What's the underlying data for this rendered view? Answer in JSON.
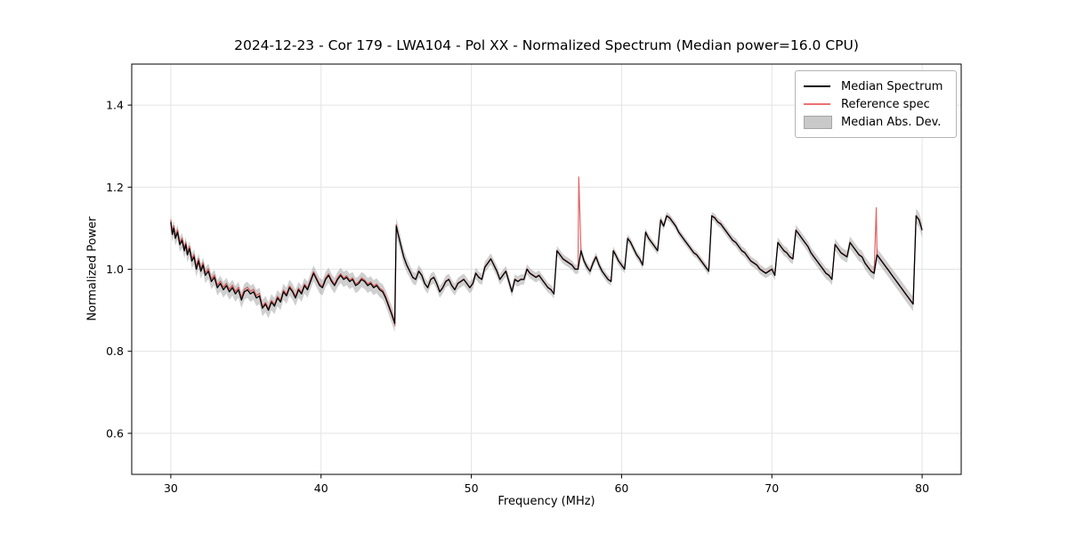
{
  "chart_data": {
    "type": "line",
    "title": "2024-12-23 - Cor 179 - LWA104 - Pol XX - Normalized Spectrum (Median power=16.0 CPU)",
    "xlabel": "Frequency (MHz)",
    "ylabel": "Normalized Power",
    "xlim": [
      27.4,
      82.6
    ],
    "ylim": [
      0.5,
      1.5
    ],
    "xticks": [
      30,
      40,
      50,
      60,
      70,
      80
    ],
    "xtick_labels": [
      "30",
      "40",
      "50",
      "60",
      "70",
      "80"
    ],
    "yticks": [
      0.6,
      0.8,
      1.0,
      1.2,
      1.4
    ],
    "ytick_labels": [
      "0.6",
      "0.8",
      "1.0",
      "1.2",
      "1.4"
    ],
    "grid": true,
    "legend_position": "upper right",
    "colors": {
      "median": "#000000",
      "reference": "rgba(215,40,40,0.72)",
      "band_fill": "rgba(128,128,128,0.38)",
      "grid": "#e4e4e4",
      "frame": "#000000"
    },
    "legend": [
      {
        "label": "Median Spectrum",
        "swatch": "line",
        "color": "#000000",
        "thickness": 2
      },
      {
        "label": "Reference spec",
        "swatch": "line",
        "color": "#ee7070",
        "thickness": 2
      },
      {
        "label": "Median Abs. Dev.",
        "swatch": "patch",
        "color": "#c9c9c9",
        "border": "#a6a6a6"
      }
    ],
    "series": [
      {
        "name": "Median Spectrum",
        "type": "line",
        "points": [
          [
            30.0,
            1.115
          ],
          [
            30.1,
            1.085
          ],
          [
            30.2,
            1.1
          ],
          [
            30.3,
            1.075
          ],
          [
            30.45,
            1.09
          ],
          [
            30.6,
            1.06
          ],
          [
            30.75,
            1.07
          ],
          [
            30.9,
            1.045
          ],
          [
            31.0,
            1.06
          ],
          [
            31.1,
            1.035
          ],
          [
            31.25,
            1.05
          ],
          [
            31.4,
            1.02
          ],
          [
            31.55,
            1.03
          ],
          [
            31.7,
            1.0
          ],
          [
            31.85,
            1.02
          ],
          [
            32.0,
            0.995
          ],
          [
            32.15,
            1.01
          ],
          [
            32.3,
            0.985
          ],
          [
            32.5,
            0.995
          ],
          [
            32.7,
            0.97
          ],
          [
            32.9,
            0.98
          ],
          [
            33.1,
            0.955
          ],
          [
            33.3,
            0.965
          ],
          [
            33.5,
            0.95
          ],
          [
            33.7,
            0.96
          ],
          [
            33.9,
            0.945
          ],
          [
            34.1,
            0.955
          ],
          [
            34.3,
            0.94
          ],
          [
            34.5,
            0.95
          ],
          [
            34.7,
            0.925
          ],
          [
            34.9,
            0.945
          ],
          [
            35.1,
            0.95
          ],
          [
            35.3,
            0.94
          ],
          [
            35.5,
            0.945
          ],
          [
            35.7,
            0.93
          ],
          [
            35.9,
            0.935
          ],
          [
            36.1,
            0.905
          ],
          [
            36.3,
            0.915
          ],
          [
            36.5,
            0.9
          ],
          [
            36.7,
            0.92
          ],
          [
            36.9,
            0.91
          ],
          [
            37.1,
            0.93
          ],
          [
            37.3,
            0.92
          ],
          [
            37.5,
            0.945
          ],
          [
            37.7,
            0.935
          ],
          [
            37.9,
            0.955
          ],
          [
            38.1,
            0.945
          ],
          [
            38.3,
            0.93
          ],
          [
            38.5,
            0.95
          ],
          [
            38.7,
            0.94
          ],
          [
            38.9,
            0.96
          ],
          [
            39.1,
            0.95
          ],
          [
            39.3,
            0.97
          ],
          [
            39.5,
            0.99
          ],
          [
            39.7,
            0.975
          ],
          [
            39.9,
            0.96
          ],
          [
            40.1,
            0.955
          ],
          [
            40.3,
            0.975
          ],
          [
            40.5,
            0.985
          ],
          [
            40.7,
            0.97
          ],
          [
            40.9,
            0.96
          ],
          [
            41.1,
            0.975
          ],
          [
            41.3,
            0.985
          ],
          [
            41.5,
            0.975
          ],
          [
            41.7,
            0.98
          ],
          [
            41.9,
            0.97
          ],
          [
            42.1,
            0.975
          ],
          [
            42.3,
            0.96
          ],
          [
            42.5,
            0.965
          ],
          [
            42.7,
            0.975
          ],
          [
            42.9,
            0.97
          ],
          [
            43.1,
            0.96
          ],
          [
            43.3,
            0.965
          ],
          [
            43.5,
            0.955
          ],
          [
            43.7,
            0.96
          ],
          [
            43.9,
            0.95
          ],
          [
            44.1,
            0.945
          ],
          [
            44.3,
            0.93
          ],
          [
            44.5,
            0.91
          ],
          [
            44.7,
            0.89
          ],
          [
            44.9,
            0.868
          ],
          [
            45.0,
            1.105
          ],
          [
            45.1,
            1.09
          ],
          [
            45.3,
            1.06
          ],
          [
            45.5,
            1.03
          ],
          [
            45.7,
            1.01
          ],
          [
            45.9,
            0.995
          ],
          [
            46.1,
            0.98
          ],
          [
            46.3,
            0.975
          ],
          [
            46.5,
            0.995
          ],
          [
            46.7,
            0.985
          ],
          [
            46.9,
            0.965
          ],
          [
            47.1,
            0.955
          ],
          [
            47.3,
            0.975
          ],
          [
            47.5,
            0.98
          ],
          [
            47.7,
            0.965
          ],
          [
            47.9,
            0.945
          ],
          [
            48.1,
            0.955
          ],
          [
            48.3,
            0.97
          ],
          [
            48.5,
            0.975
          ],
          [
            48.7,
            0.96
          ],
          [
            48.9,
            0.95
          ],
          [
            49.1,
            0.965
          ],
          [
            49.3,
            0.97
          ],
          [
            49.5,
            0.975
          ],
          [
            49.7,
            0.965
          ],
          [
            49.9,
            0.955
          ],
          [
            50.1,
            0.965
          ],
          [
            50.3,
            0.99
          ],
          [
            50.5,
            0.98
          ],
          [
            50.7,
            0.975
          ],
          [
            50.9,
            1.005
          ],
          [
            51.1,
            1.015
          ],
          [
            51.3,
            1.025
          ],
          [
            51.5,
            1.01
          ],
          [
            51.7,
            0.995
          ],
          [
            51.9,
            0.975
          ],
          [
            52.1,
            0.985
          ],
          [
            52.3,
            0.995
          ],
          [
            52.5,
            0.97
          ],
          [
            52.7,
            0.945
          ],
          [
            52.9,
            0.975
          ],
          [
            53.1,
            0.97
          ],
          [
            53.3,
            0.975
          ],
          [
            53.5,
            0.975
          ],
          [
            53.7,
            1.0
          ],
          [
            53.9,
            0.99
          ],
          [
            54.1,
            0.985
          ],
          [
            54.3,
            0.98
          ],
          [
            54.5,
            0.985
          ],
          [
            54.7,
            0.975
          ],
          [
            54.9,
            0.965
          ],
          [
            55.1,
            0.955
          ],
          [
            55.3,
            0.95
          ],
          [
            55.5,
            0.94
          ],
          [
            55.7,
            1.045
          ],
          [
            55.9,
            1.035
          ],
          [
            56.1,
            1.025
          ],
          [
            56.3,
            1.02
          ],
          [
            56.5,
            1.015
          ],
          [
            56.7,
            1.01
          ],
          [
            56.9,
            1.0
          ],
          [
            57.1,
            1.0
          ],
          [
            57.3,
            1.045
          ],
          [
            57.5,
            1.02
          ],
          [
            57.7,
            1.005
          ],
          [
            57.9,
            0.995
          ],
          [
            58.1,
            1.015
          ],
          [
            58.3,
            1.03
          ],
          [
            58.5,
            1.01
          ],
          [
            58.7,
            0.995
          ],
          [
            58.9,
            0.985
          ],
          [
            59.1,
            0.975
          ],
          [
            59.3,
            0.97
          ],
          [
            59.45,
            1.045
          ],
          [
            59.6,
            1.035
          ],
          [
            59.8,
            1.02
          ],
          [
            60.0,
            1.01
          ],
          [
            60.2,
            1.0
          ],
          [
            60.4,
            1.075
          ],
          [
            60.6,
            1.065
          ],
          [
            60.8,
            1.05
          ],
          [
            61.0,
            1.035
          ],
          [
            61.2,
            1.025
          ],
          [
            61.4,
            1.01
          ],
          [
            61.6,
            1.09
          ],
          [
            61.8,
            1.075
          ],
          [
            62.0,
            1.065
          ],
          [
            62.2,
            1.055
          ],
          [
            62.4,
            1.045
          ],
          [
            62.6,
            1.12
          ],
          [
            62.8,
            1.105
          ],
          [
            63.0,
            1.13
          ],
          [
            63.2,
            1.125
          ],
          [
            63.4,
            1.115
          ],
          [
            63.6,
            1.105
          ],
          [
            63.8,
            1.09
          ],
          [
            64.0,
            1.08
          ],
          [
            64.2,
            1.07
          ],
          [
            64.4,
            1.06
          ],
          [
            64.6,
            1.05
          ],
          [
            64.8,
            1.04
          ],
          [
            65.0,
            1.035
          ],
          [
            65.2,
            1.025
          ],
          [
            65.4,
            1.015
          ],
          [
            65.6,
            1.005
          ],
          [
            65.8,
            0.995
          ],
          [
            66.0,
            1.13
          ],
          [
            66.2,
            1.125
          ],
          [
            66.4,
            1.115
          ],
          [
            66.6,
            1.11
          ],
          [
            66.8,
            1.1
          ],
          [
            67.0,
            1.09
          ],
          [
            67.2,
            1.08
          ],
          [
            67.4,
            1.07
          ],
          [
            67.6,
            1.065
          ],
          [
            67.8,
            1.055
          ],
          [
            68.0,
            1.045
          ],
          [
            68.2,
            1.04
          ],
          [
            68.4,
            1.03
          ],
          [
            68.6,
            1.02
          ],
          [
            68.8,
            1.015
          ],
          [
            69.0,
            1.01
          ],
          [
            69.2,
            1.0
          ],
          [
            69.4,
            0.995
          ],
          [
            69.6,
            0.99
          ],
          [
            69.8,
            0.995
          ],
          [
            70.0,
            1.0
          ],
          [
            70.2,
            0.985
          ],
          [
            70.4,
            1.065
          ],
          [
            70.6,
            1.055
          ],
          [
            70.8,
            1.045
          ],
          [
            71.0,
            1.04
          ],
          [
            71.2,
            1.03
          ],
          [
            71.4,
            1.025
          ],
          [
            71.6,
            1.095
          ],
          [
            71.8,
            1.085
          ],
          [
            72.0,
            1.075
          ],
          [
            72.2,
            1.065
          ],
          [
            72.4,
            1.055
          ],
          [
            72.6,
            1.04
          ],
          [
            72.8,
            1.03
          ],
          [
            73.0,
            1.02
          ],
          [
            73.2,
            1.01
          ],
          [
            73.4,
            1.0
          ],
          [
            73.6,
            0.99
          ],
          [
            73.8,
            0.985
          ],
          [
            74.0,
            0.975
          ],
          [
            74.2,
            1.06
          ],
          [
            74.4,
            1.05
          ],
          [
            74.6,
            1.04
          ],
          [
            74.8,
            1.035
          ],
          [
            75.0,
            1.03
          ],
          [
            75.2,
            1.065
          ],
          [
            75.4,
            1.055
          ],
          [
            75.6,
            1.045
          ],
          [
            75.8,
            1.035
          ],
          [
            76.0,
            1.03
          ],
          [
            76.2,
            1.015
          ],
          [
            76.4,
            1.005
          ],
          [
            76.6,
            0.995
          ],
          [
            76.8,
            0.99
          ],
          [
            77.0,
            1.035
          ],
          [
            77.2,
            1.025
          ],
          [
            77.4,
            1.015
          ],
          [
            77.6,
            1.005
          ],
          [
            77.8,
            0.995
          ],
          [
            78.0,
            0.985
          ],
          [
            78.2,
            0.975
          ],
          [
            78.4,
            0.965
          ],
          [
            78.6,
            0.955
          ],
          [
            78.8,
            0.945
          ],
          [
            79.0,
            0.935
          ],
          [
            79.2,
            0.925
          ],
          [
            79.4,
            0.915
          ],
          [
            79.6,
            1.13
          ],
          [
            79.8,
            1.12
          ],
          [
            80.0,
            1.095
          ]
        ]
      },
      {
        "name": "Reference spec",
        "type": "line",
        "follows": "Median Spectrum",
        "offset_regions": [
          {
            "from": 30.0,
            "to": 36.0,
            "dy": 0.006
          },
          {
            "from": 36.0,
            "to": 45.0,
            "dy": 0.004
          },
          {
            "from": 45.0,
            "to": 82.6,
            "dy": 0.001
          }
        ],
        "spikes": [
          [
            44.92,
            0.862
          ],
          [
            57.15,
            1.225
          ],
          [
            76.95,
            1.15
          ]
        ]
      },
      {
        "name": "Median Abs. Dev.",
        "type": "band",
        "around": "Median Spectrum",
        "half_width_points": [
          [
            30,
            0.018
          ],
          [
            36,
            0.02
          ],
          [
            44,
            0.018
          ],
          [
            45,
            0.022
          ],
          [
            46,
            0.015
          ],
          [
            50,
            0.014
          ],
          [
            55,
            0.012
          ],
          [
            60,
            0.01
          ],
          [
            65,
            0.009
          ],
          [
            70,
            0.012
          ],
          [
            74,
            0.014
          ],
          [
            77,
            0.016
          ],
          [
            80,
            0.018
          ]
        ]
      }
    ]
  }
}
